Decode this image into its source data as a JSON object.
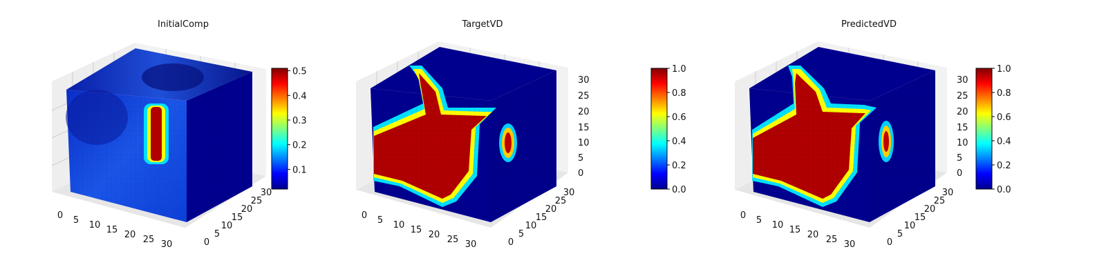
{
  "chart_data": [
    {
      "type": "voxel",
      "title": "InitialComp",
      "x_ticks": [
        "0",
        "5",
        "10",
        "15",
        "20",
        "25",
        "30"
      ],
      "y_ticks": [
        "0",
        "5",
        "10",
        "15",
        "20",
        "25",
        "30"
      ],
      "z_ticks": [],
      "colorbar": {
        "colormap": "jet",
        "range": [
          0.02,
          0.51
        ],
        "ticks": [
          "0.1",
          "0.2",
          "0.3",
          "0.4",
          "0.5"
        ],
        "tick_values": [
          0.1,
          0.2,
          0.3,
          0.4,
          0.5
        ]
      }
    },
    {
      "type": "voxel",
      "title": "TargetVD",
      "x_ticks": [
        "0",
        "5",
        "10",
        "15",
        "20",
        "25",
        "30"
      ],
      "y_ticks": [
        "0",
        "5",
        "10",
        "15",
        "20",
        "25",
        "30"
      ],
      "z_ticks": [
        "0",
        "5",
        "10",
        "15",
        "20",
        "25",
        "30"
      ],
      "colorbar": {
        "colormap": "jet",
        "range": [
          0.0,
          1.0
        ],
        "ticks": [
          "0.0",
          "0.2",
          "0.4",
          "0.6",
          "0.8",
          "1.0"
        ],
        "tick_values": [
          0.0,
          0.2,
          0.4,
          0.6,
          0.8,
          1.0
        ]
      }
    },
    {
      "type": "voxel",
      "title": "PredictedVD",
      "x_ticks": [
        "0",
        "5",
        "10",
        "15",
        "20",
        "25",
        "30"
      ],
      "y_ticks": [
        "0",
        "5",
        "10",
        "15",
        "20",
        "25",
        "30"
      ],
      "z_ticks": [
        "0",
        "5",
        "10",
        "15",
        "20",
        "25",
        "30"
      ],
      "colorbar": {
        "colormap": "jet",
        "range": [
          0.0,
          1.0
        ],
        "ticks": [
          "0.0",
          "0.2",
          "0.4",
          "0.6",
          "0.8",
          "1.0"
        ],
        "tick_values": [
          0.0,
          0.2,
          0.4,
          0.6,
          0.8,
          1.0
        ]
      }
    }
  ],
  "colors": {
    "jet_dark_blue": "#00008f",
    "jet_blue": "#0000ff",
    "jet_cyan": "#00ffff",
    "jet_yellow": "#ffff00",
    "jet_red": "#ff0000",
    "jet_dark_red": "#800000",
    "pane_gray": "#f2f2f2",
    "grid_gray": "#c8c8c8"
  }
}
